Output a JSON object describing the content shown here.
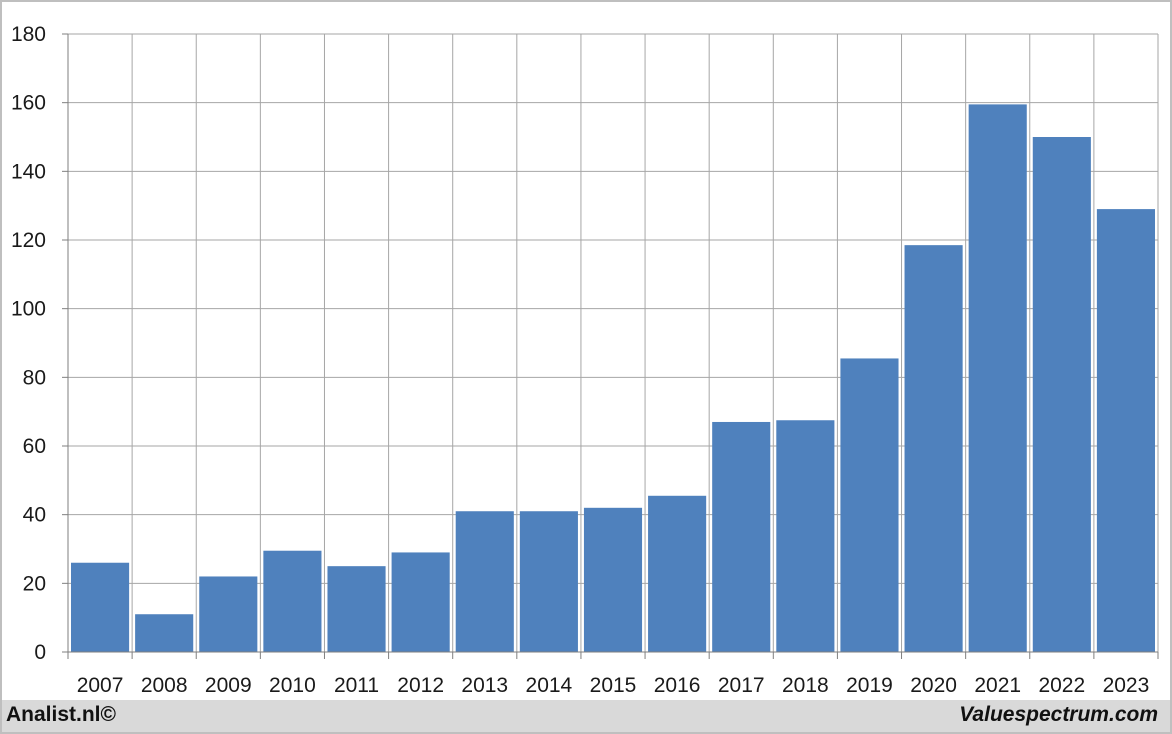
{
  "colors": {
    "bar": "#4f81bd",
    "grid": "#a6a6a6",
    "axis": "#7f7f7f",
    "frame": "#bfbfbf",
    "footer_band": "#d9d9d9"
  },
  "footer": {
    "left": "Analist.nl©",
    "right": "Valuespectrum.com"
  },
  "chart_data": {
    "type": "bar",
    "title": "",
    "xlabel": "",
    "ylabel": "",
    "ylim": [
      0,
      180
    ],
    "yticks": [
      0,
      20,
      40,
      60,
      80,
      100,
      120,
      140,
      160,
      180
    ],
    "grid": true,
    "categories": [
      "2007",
      "2008",
      "2009",
      "2010",
      "2011",
      "2012",
      "2013",
      "2014",
      "2015",
      "2016",
      "2017",
      "2018",
      "2019",
      "2020",
      "2021",
      "2022",
      "2023"
    ],
    "values": [
      26,
      11,
      22,
      29.5,
      25,
      29,
      41,
      41,
      42,
      45.5,
      67,
      67.5,
      85.5,
      118.5,
      159.5,
      150,
      129
    ]
  }
}
